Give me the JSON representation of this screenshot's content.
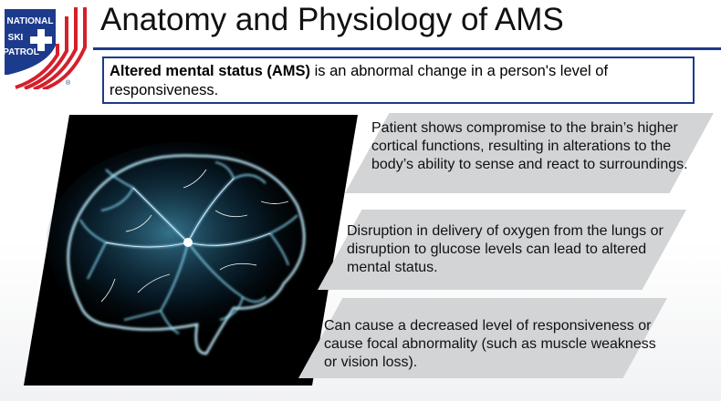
{
  "logo": {
    "line1": "NATIONAL",
    "line2": "SKI",
    "line3": "PATROL",
    "registered": "®",
    "icon": "ski-patrol-cross-logo",
    "colors": {
      "blue": "#1d3b8c",
      "red": "#d4202c"
    }
  },
  "header": {
    "title": "Anatomy and Physiology of AMS"
  },
  "definition": {
    "term": "Altered mental status (AMS)",
    "text": " is an abnormal change in a person's level of responsiveness."
  },
  "image": {
    "icon": "glowing-brain-neurons-image"
  },
  "points": [
    {
      "text": "Patient shows compromise to the brain’s higher cortical functions, resulting in alterations to the body’s ability to sense and react to surroundings."
    },
    {
      "text": "Disruption in delivery of oxygen from the lungs or disruption to glucose levels can lead to altered mental status."
    },
    {
      "text": "Can cause a decreased level of responsiveness or cause focal abnormality (such as muscle weakness or vision loss)."
    }
  ],
  "colors": {
    "accent": "#1d3b8c",
    "card": "#d3d4d6"
  }
}
